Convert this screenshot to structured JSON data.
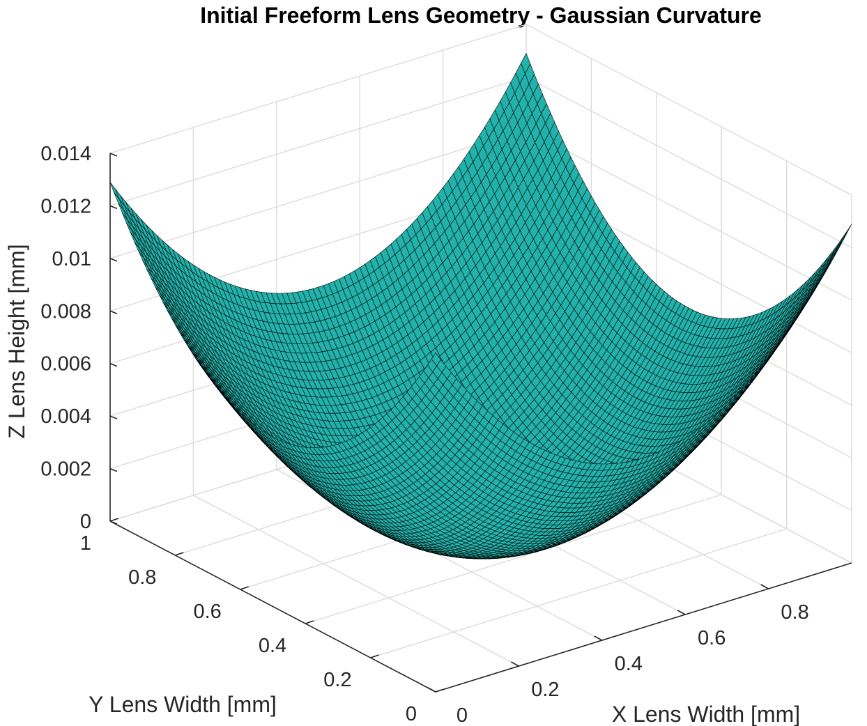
{
  "chart_data": {
    "type": "surface",
    "title": "Initial Freeform Lens Geometry - Gaussian Curvature",
    "xlabel": "X Lens Width [mm]",
    "ylabel": "Y Lens Width [mm]",
    "zlabel": "Z Lens Height [mm]",
    "xlim": [
      0,
      1
    ],
    "ylim": [
      0,
      1
    ],
    "zlim": [
      0,
      0.014
    ],
    "xticks": [
      0,
      0.2,
      0.4,
      0.6,
      0.8
    ],
    "xticklabels": [
      "0",
      "0.2",
      "0.4",
      "0.6",
      "0.8"
    ],
    "yticks": [
      0,
      0.2,
      0.4,
      0.6,
      0.8,
      1
    ],
    "yticklabels": [
      "0",
      "0.2",
      "0.4",
      "0.6",
      "0.8",
      "1"
    ],
    "zticks": [
      0,
      0.002,
      0.004,
      0.006,
      0.008,
      0.01,
      0.012,
      0.014
    ],
    "zticklabels": [
      "0",
      "0.002",
      "0.004",
      "0.006",
      "0.008",
      "0.01",
      "0.012",
      "0.014"
    ],
    "grid": true,
    "surface": {
      "function": "paraboloid",
      "equation": "z = a*((x-0.5)^2 + (y-0.5)^2)",
      "x_range": [
        0,
        1
      ],
      "y_range": [
        0,
        1
      ],
      "grid_points": 80,
      "z_min": 0,
      "z_at_corners": 0.0129,
      "face_color": "#22b2ab",
      "edge_color": "#000000"
    }
  }
}
